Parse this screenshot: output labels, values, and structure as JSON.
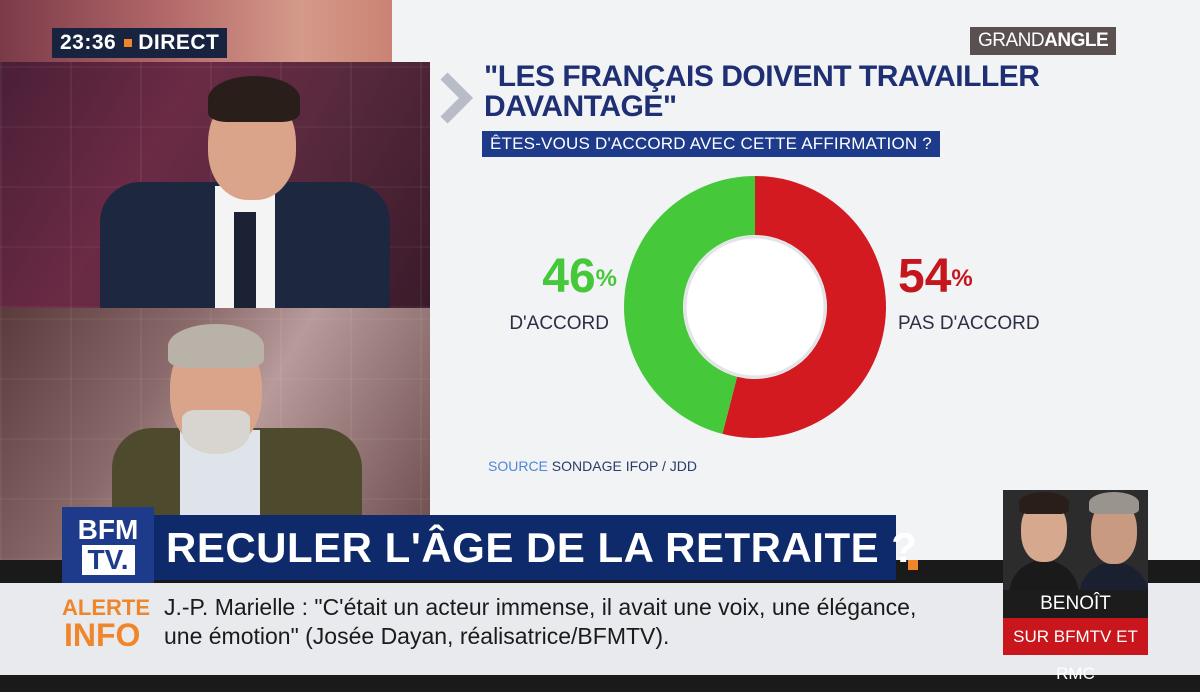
{
  "header": {
    "clock": "23:36",
    "live_label": "DIRECT",
    "program_logo_a": "GRAND",
    "program_logo_b": "ANGLE"
  },
  "chart_data": {
    "type": "pie",
    "title": "\"LES FRANÇAIS DOIVENT TRAVAILLER DAVANTAGE\"",
    "subtitle": "ÊTES-VOUS D'ACCORD AVEC CETTE AFFIRMATION ?",
    "slices": [
      {
        "label": "D'ACCORD",
        "value": 46,
        "display": "46",
        "unit": "%",
        "color": "#45c93a"
      },
      {
        "label": "PAS D'ACCORD",
        "value": 54,
        "display": "54",
        "unit": "%",
        "color": "#d21a20"
      }
    ],
    "source_key": "SOURCE",
    "source_value": "SONDAGE IFOP / JDD"
  },
  "headline": {
    "brand_top": "BFM",
    "brand_bottom": "TV.",
    "text": "RECULER L'ÂGE DE LA RETRAITE ?"
  },
  "ticker": {
    "label_top": "ALERTE",
    "label_bottom": "INFO",
    "text": "J.-P. Marielle : \"C'était un acteur immense, il avait une voix, une élégance, une émotion\" (Josée Dayan, réalisatrice/BFMTV)."
  },
  "promo": {
    "name": "BENOÎT HAMON",
    "cta": "SUR BFMTV ET RMC"
  },
  "colors": {
    "navy": "#0f2a6b",
    "accent_orange": "#f0862a",
    "agree_green": "#45c93a",
    "disagree_red": "#d21a20"
  }
}
